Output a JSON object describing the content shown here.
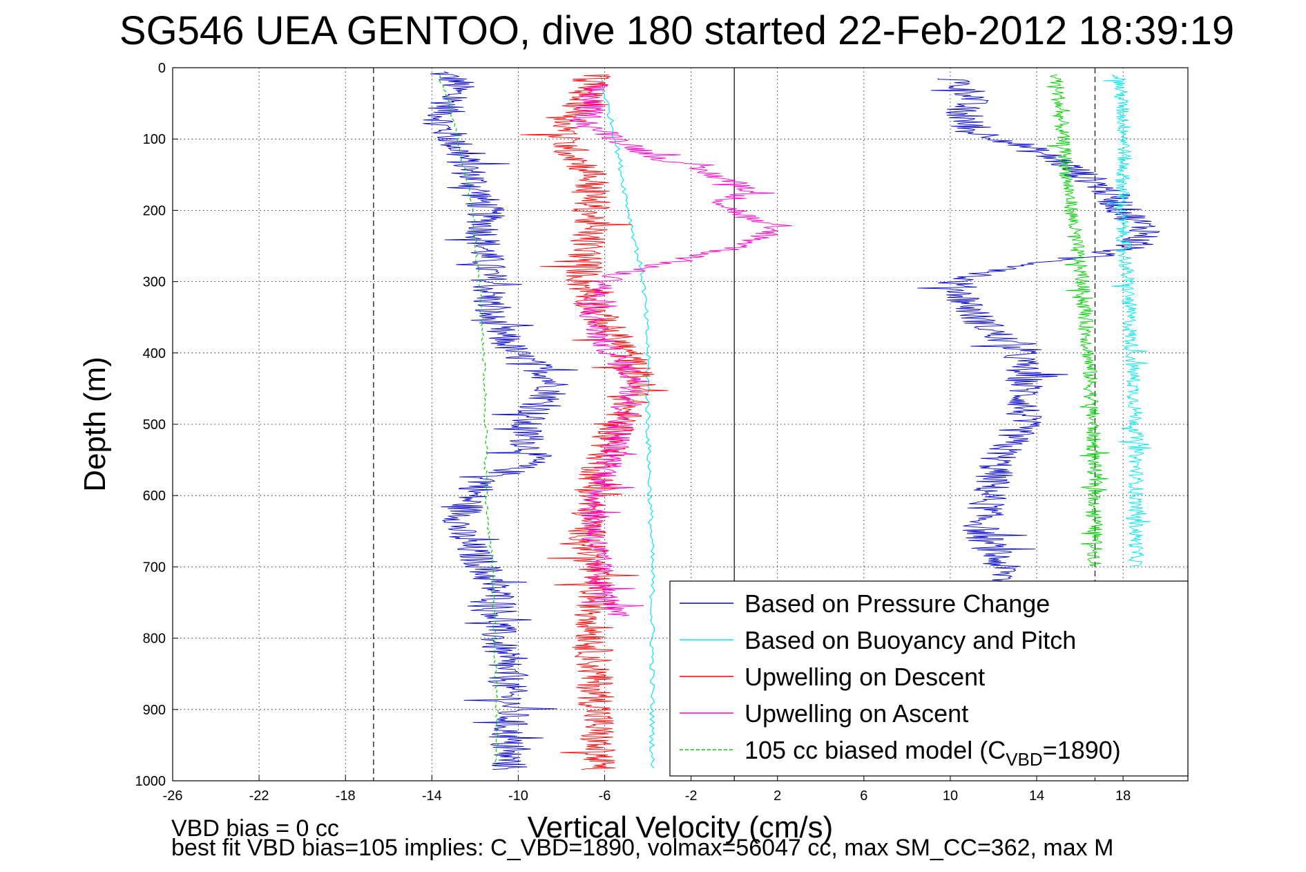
{
  "chart_data": {
    "type": "line",
    "title": "SG546 UEA GENTOO, dive 180 started 22-Feb-2012 18:39:19",
    "xlabel": "Vertical Velocity (cm/s)",
    "ylabel": "Depth (m)",
    "xlim": [
      -26,
      21
    ],
    "ylim": [
      1000,
      0
    ],
    "y_reversed": true,
    "xticks": [
      -26,
      -22,
      -18,
      -14,
      -10,
      -6,
      -2,
      2,
      6,
      10,
      14,
      18
    ],
    "yticks": [
      0,
      100,
      200,
      300,
      400,
      500,
      600,
      700,
      800,
      900,
      1000
    ],
    "grid": true,
    "vertical_lines": [
      {
        "x": -16.7,
        "style": "dashed",
        "color": "#000000"
      },
      {
        "x": 0,
        "style": "solid",
        "color": "#000000"
      },
      {
        "x": 16.7,
        "style": "dashed",
        "color": "#000000"
      }
    ],
    "legend_position": "bottom-right",
    "series": [
      {
        "name": "Based on Pressure Change",
        "color": "#0000cc",
        "noise": 0.9,
        "depth": [
          5,
          20,
          50,
          80,
          100,
          150,
          200,
          250,
          300,
          350,
          400,
          430,
          450,
          500,
          550,
          580,
          600,
          650,
          700,
          750,
          800,
          850,
          900,
          950,
          985
        ],
        "values": [
          -13.7,
          -12.8,
          -13.2,
          -13.6,
          -13.0,
          -12.2,
          -11.5,
          -11.6,
          -11.3,
          -11.4,
          -10.2,
          -8.6,
          -8.3,
          -9.8,
          -9.3,
          -11.5,
          -12.2,
          -12.8,
          -11.6,
          -10.8,
          -11.0,
          -10.6,
          -10.3,
          -10.6,
          -10.4
        ]
      },
      {
        "name": "Based on Pressure Change",
        "color": "#0000cc",
        "noise": 0.9,
        "depth": [
          15,
          40,
          60,
          90,
          100,
          130,
          170,
          200,
          230,
          255,
          270,
          290,
          300,
          350,
          400,
          450,
          500,
          550,
          600,
          650,
          690,
          720
        ],
        "values": [
          10.0,
          11.2,
          10.4,
          11.0,
          12.5,
          15.0,
          17.2,
          18.0,
          19.2,
          18.0,
          15.0,
          11.5,
          10.2,
          11.2,
          13.2,
          13.5,
          13.3,
          12.2,
          11.8,
          11.4,
          12.2,
          12.6
        ]
      },
      {
        "name": "Based on Buoyancy and Pitch",
        "color": "#00e5ee",
        "noise": 0.12,
        "depth": [
          10,
          100,
          200,
          300,
          400,
          500,
          600,
          700,
          800,
          900,
          985
        ],
        "values": [
          -6.2,
          -5.5,
          -4.9,
          -4.2,
          -4.0,
          -4.0,
          -3.9,
          -3.8,
          -3.8,
          -3.8,
          -3.8
        ]
      },
      {
        "name": "Based on Buoyancy and Pitch",
        "color": "#00e5ee",
        "noise": 0.35,
        "depth": [
          10,
          100,
          200,
          300,
          400,
          500,
          600,
          700
        ],
        "values": [
          17.8,
          18.1,
          17.9,
          18.2,
          18.4,
          18.6,
          18.6,
          18.6
        ]
      },
      {
        "name": "Upwelling on Descent",
        "color": "#ff0000",
        "noise": 0.9,
        "depth": [
          10,
          60,
          100,
          150,
          200,
          250,
          300,
          350,
          400,
          440,
          480,
          520,
          560,
          600,
          650,
          700,
          750,
          800,
          850,
          900,
          950,
          985
        ],
        "values": [
          -6.5,
          -7.2,
          -8.0,
          -6.6,
          -6.6,
          -6.8,
          -7.0,
          -6.2,
          -5.0,
          -4.4,
          -5.0,
          -5.6,
          -6.2,
          -6.6,
          -6.8,
          -6.6,
          -6.4,
          -6.5,
          -6.5,
          -6.3,
          -6.4,
          -6.3
        ]
      },
      {
        "name": "Upwelling on Ascent",
        "color": "#ff00cc",
        "noise": 0.7,
        "depth": [
          20,
          80,
          120,
          150,
          170,
          190,
          210,
          230,
          250,
          270,
          290,
          330,
          380,
          440,
          500,
          560,
          620,
          680,
          740,
          770
        ],
        "values": [
          -6.5,
          -6.8,
          -4.0,
          -1.0,
          0.8,
          -0.5,
          0.6,
          1.8,
          0.4,
          -2.5,
          -5.5,
          -6.8,
          -6.2,
          -4.5,
          -5.2,
          -5.8,
          -6.5,
          -6.4,
          -6.0,
          -5.5
        ]
      },
      {
        "name": "105 cc biased model (C_VBD=1890)",
        "color": "#00cc00",
        "noise": 0.08,
        "dashed": true,
        "depth": [
          10,
          50,
          100,
          200,
          300,
          400,
          500,
          600,
          700,
          800,
          900,
          985
        ],
        "values": [
          -13.7,
          -13.2,
          -12.8,
          -12.1,
          -11.8,
          -11.6,
          -11.5,
          -11.5,
          -11.2,
          -11.1,
          -11.0,
          -11.0
        ]
      },
      {
        "name": "105 cc biased model (C_VBD=1890)",
        "color": "#00cc00",
        "noise": 0.35,
        "depth": [
          10,
          100,
          200,
          300,
          400,
          500,
          600,
          700
        ],
        "values": [
          14.9,
          15.2,
          15.6,
          16.1,
          16.4,
          16.6,
          16.7,
          16.7
        ]
      }
    ],
    "legend": [
      {
        "label": "Based on Pressure Change",
        "color": "#0000cc",
        "dashed": false
      },
      {
        "label": "Based on Buoyancy and Pitch",
        "color": "#00e5ee",
        "dashed": false
      },
      {
        "label": "Upwelling on Descent",
        "color": "#ff0000",
        "dashed": false
      },
      {
        "label": "Upwelling on Ascent",
        "color": "#ff00cc",
        "dashed": false
      },
      {
        "label": "105 cc biased model (C",
        "sub": "VBD",
        "tail": "=1890)",
        "color": "#00cc00",
        "dashed": true
      }
    ],
    "annotations": [
      "VBD bias = 0 cc",
      "best fit VBD bias=105 implies: C_VBD=1890, volmax=56047 cc, max SM_CC=362, max M"
    ]
  }
}
